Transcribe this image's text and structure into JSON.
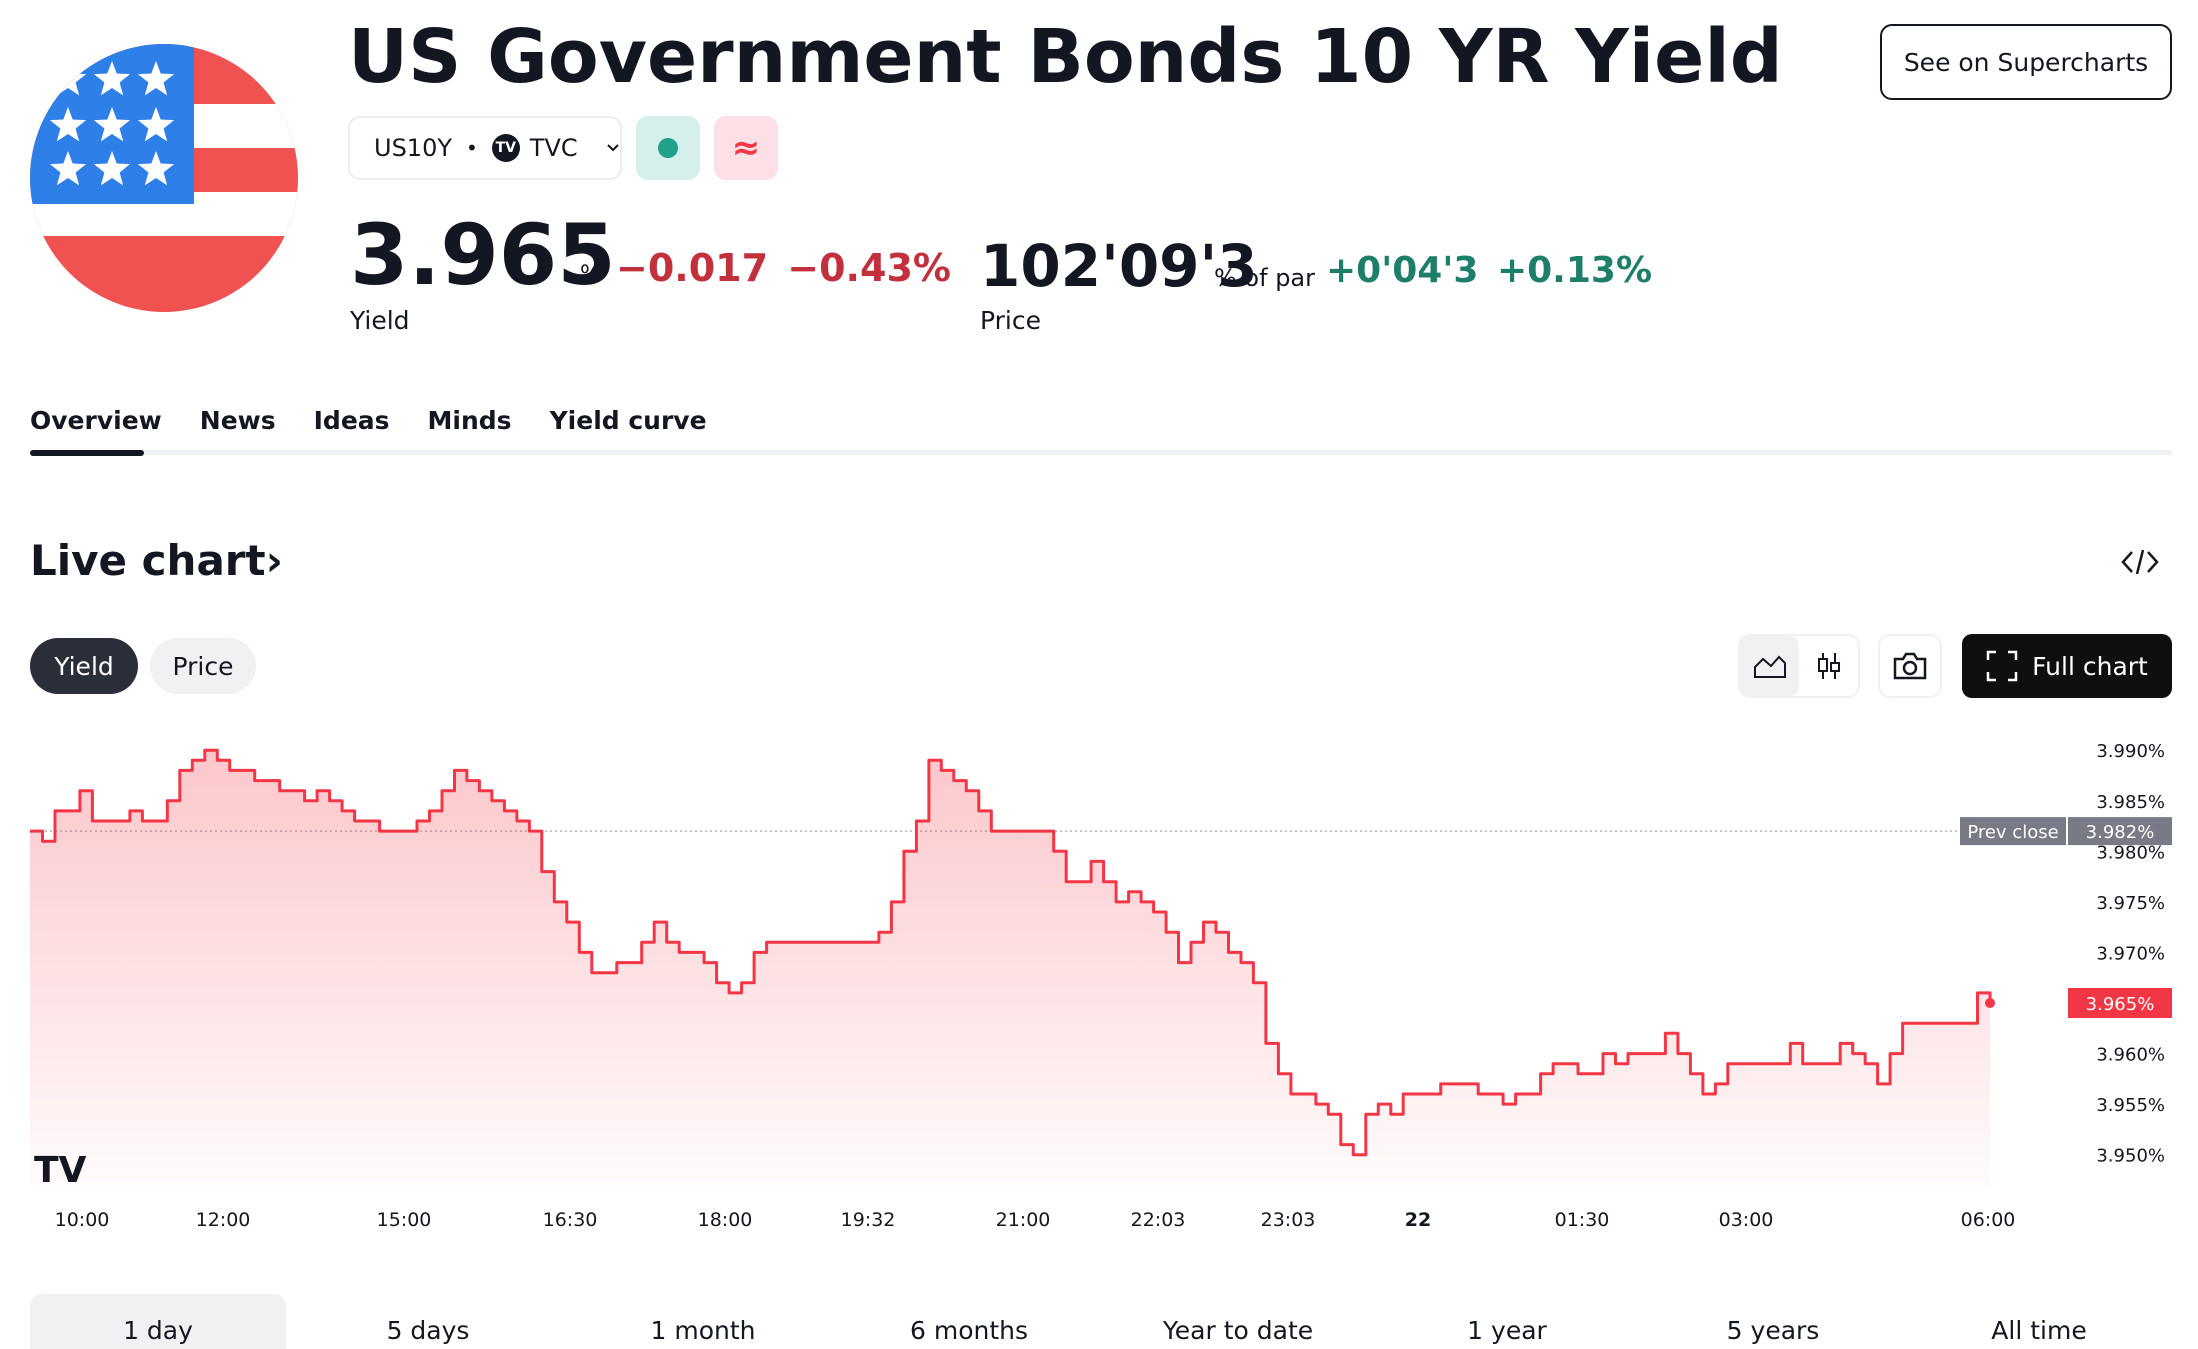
{
  "header": {
    "title": "US Government Bonds 10 YR Yield",
    "symbol": "US10Y",
    "exchange": "TVC",
    "exchange_logo": "TV",
    "delay_glyph": "≈",
    "supercharts_label": "See on Supercharts",
    "colors": {
      "accent_red": "#f23645",
      "accent_green": "#22a08a",
      "dark": "#131722"
    },
    "icons": [
      "us-flag-icon",
      "tradingview-logo-icon",
      "chevron-down-icon",
      "market-status-icon",
      "delayed-data-icon"
    ]
  },
  "quote": {
    "yield_value": "3.965",
    "yield_unit": "%",
    "yield_change": "−0.017",
    "yield_change_pct": "−0.43%",
    "yield_label": "Yield",
    "price_value": "102'09'3",
    "price_unit": "% of par",
    "price_change": "+0'04'3",
    "price_change_pct": "+0.13%",
    "price_label": "Price"
  },
  "tabs": [
    {
      "label": "Overview",
      "active": true
    },
    {
      "label": "News"
    },
    {
      "label": "Ideas"
    },
    {
      "label": "Minds"
    },
    {
      "label": "Yield curve"
    }
  ],
  "section": {
    "title": "Live chart",
    "chevron": "›",
    "icons": [
      "embed-code-icon",
      "area-chart-icon",
      "candlestick-icon",
      "camera-icon",
      "fullscreen-icon"
    ],
    "yield_toggle": "Yield",
    "price_toggle": "Price",
    "full_chart_label": "Full chart"
  },
  "chart_data": {
    "type": "line",
    "style": "area",
    "color": "#f23645",
    "ylim": [
      3.947,
      3.992
    ],
    "y_ticks": [
      "3.990%",
      "3.985%",
      "3.980%",
      "3.975%",
      "3.970%",
      "3.965%",
      "3.960%",
      "3.955%",
      "3.950%"
    ],
    "x_ticks": [
      "10:00",
      "12:00",
      "15:00",
      "16:30",
      "18:00",
      "19:32",
      "21:00",
      "22:03",
      "23:03",
      "22",
      "01:30",
      "03:00",
      "06:00"
    ],
    "prev_close_label": "Prev close",
    "prev_close_value": 3.982,
    "prev_close_text": "3.982%",
    "last_value": 3.965,
    "last_value_text": "3.965%",
    "watermark": "TV",
    "values": [
      3.982,
      3.981,
      3.984,
      3.984,
      3.986,
      3.983,
      3.983,
      3.983,
      3.984,
      3.983,
      3.983,
      3.985,
      3.988,
      3.989,
      3.99,
      3.989,
      3.988,
      3.988,
      3.987,
      3.987,
      3.986,
      3.986,
      3.985,
      3.986,
      3.985,
      3.984,
      3.983,
      3.983,
      3.982,
      3.982,
      3.982,
      3.983,
      3.984,
      3.986,
      3.988,
      3.987,
      3.986,
      3.985,
      3.984,
      3.983,
      3.982,
      3.978,
      3.975,
      3.973,
      3.97,
      3.968,
      3.968,
      3.969,
      3.969,
      3.971,
      3.973,
      3.971,
      3.97,
      3.97,
      3.969,
      3.967,
      3.966,
      3.967,
      3.97,
      3.971,
      3.971,
      3.971,
      3.971,
      3.971,
      3.971,
      3.971,
      3.971,
      3.971,
      3.972,
      3.975,
      3.98,
      3.983,
      3.989,
      3.988,
      3.987,
      3.986,
      3.984,
      3.982,
      3.982,
      3.982,
      3.982,
      3.982,
      3.98,
      3.977,
      3.977,
      3.979,
      3.977,
      3.975,
      3.976,
      3.975,
      3.974,
      3.972,
      3.969,
      3.971,
      3.973,
      3.972,
      3.97,
      3.969,
      3.967,
      3.961,
      3.958,
      3.956,
      3.956,
      3.955,
      3.954,
      3.951,
      3.95,
      3.954,
      3.955,
      3.954,
      3.956,
      3.956,
      3.956,
      3.957,
      3.957,
      3.957,
      3.956,
      3.956,
      3.955,
      3.956,
      3.956,
      3.958,
      3.959,
      3.959,
      3.958,
      3.958,
      3.96,
      3.959,
      3.96,
      3.96,
      3.96,
      3.962,
      3.96,
      3.958,
      3.956,
      3.957,
      3.959,
      3.959,
      3.959,
      3.959,
      3.959,
      3.961,
      3.959,
      3.959,
      3.959,
      3.961,
      3.96,
      3.959,
      3.957,
      3.96,
      3.963,
      3.963,
      3.963,
      3.963,
      3.963,
      3.963,
      3.966,
      3.965
    ]
  },
  "ranges": [
    {
      "label": "1 day",
      "active": true
    },
    {
      "label": "5 days"
    },
    {
      "label": "1 month"
    },
    {
      "label": "6 months"
    },
    {
      "label": "Year to date"
    },
    {
      "label": "1 year"
    },
    {
      "label": "5 years"
    },
    {
      "label": "All time"
    }
  ]
}
